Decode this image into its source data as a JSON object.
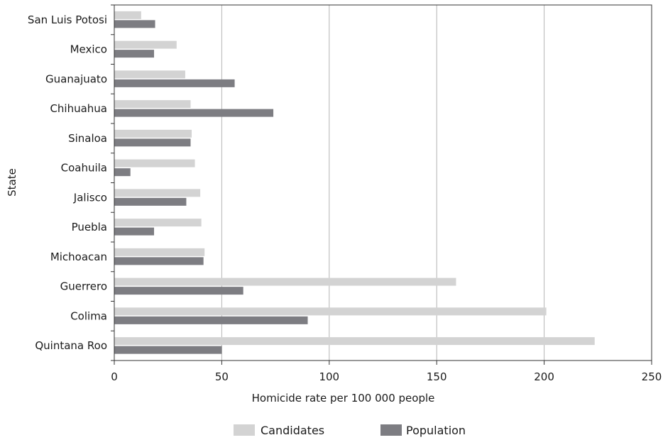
{
  "chart_data": {
    "type": "bar",
    "orientation": "horizontal",
    "categories": [
      "San Luis Potosi",
      "Mexico",
      "Guanajuato",
      "Chihuahua",
      "Sinaloa",
      "Coahuila",
      "Jalisco",
      "Puebla",
      "Michoacan",
      "Guerrero",
      "Colima",
      "Quintana Roo"
    ],
    "series": [
      {
        "name": "Candidates",
        "color": "#d3d3d3",
        "values": [
          12.5,
          29,
          33,
          35.5,
          36,
          37.5,
          40,
          40.5,
          42,
          159,
          201,
          223.5
        ]
      },
      {
        "name": "Population",
        "color": "#7d7d82",
        "values": [
          19,
          18.5,
          56,
          74,
          35.5,
          7.5,
          33.5,
          18.5,
          41.5,
          60,
          90,
          50
        ]
      }
    ],
    "xlabel": "Homicide rate per 100 000 people",
    "ylabel": "State",
    "xlim": [
      0,
      250
    ],
    "xticks": [
      0,
      50,
      100,
      150,
      200,
      250
    ],
    "xtick_labels": [
      "0",
      "50",
      "100",
      "150",
      "200",
      "250"
    ],
    "grid": "vertical",
    "legend": "bottom-center"
  }
}
